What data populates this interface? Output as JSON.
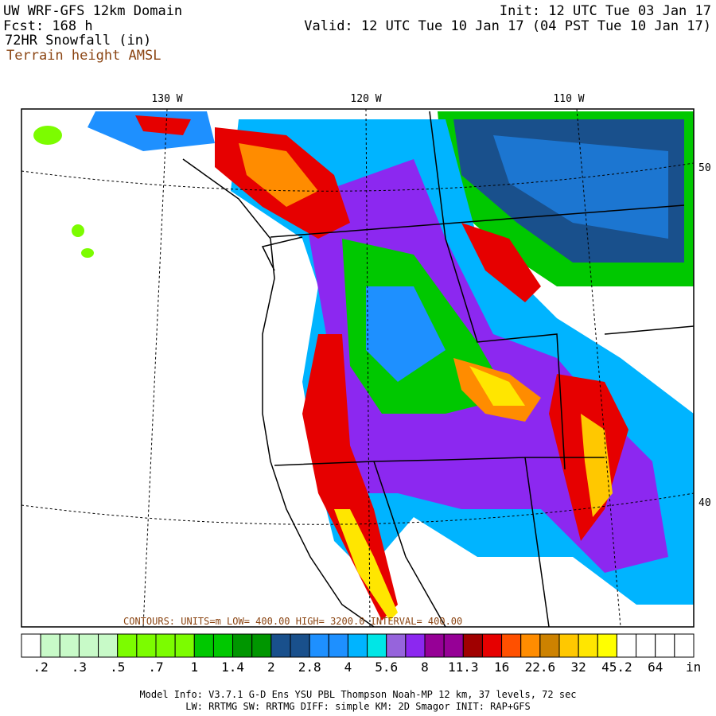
{
  "header": {
    "title": "UW WRF-GFS 12km Domain",
    "forecast": "Fcst:  168 h",
    "product": "72HR Snowfall (in)",
    "terrain": "Terrain height AMSL",
    "init": "Init: 12 UTC Tue 03 Jan 17",
    "valid": "Valid: 12 UTC Tue 10 Jan 17 (04 PST Tue 10 Jan 17)"
  },
  "map": {
    "lon_labels": [
      "130 W",
      "120 W",
      "110 W"
    ],
    "lat_labels": [
      "50",
      "40"
    ],
    "contour_note": "CONTOURS: UNITS=m  LOW= 400.00  HIGH= 3200.0  INTERVAL= 400.00"
  },
  "colorbar": {
    "colors": [
      "#ffffff",
      "#c8fac8",
      "#c8fac8",
      "#c8fac8",
      "#c8fac8",
      "#7cfc00",
      "#7cfc00",
      "#7cfc00",
      "#7cfc00",
      "#00c800",
      "#00c800",
      "#009600",
      "#009600",
      "#19508c",
      "#19508c",
      "#1e90ff",
      "#1e90ff",
      "#00b4ff",
      "#00e6e6",
      "#9664dc",
      "#8c28f0",
      "#960096",
      "#960096",
      "#a00000",
      "#e60000",
      "#ff5000",
      "#ff8c00",
      "#cd8200",
      "#ffc800",
      "#ffe600",
      "#ffff00",
      "#ffffff",
      "#ffffff",
      "#ffffff",
      "#ffffff"
    ],
    "labels": [
      ".2",
      ".3",
      ".5",
      ".7",
      "1",
      "1.4",
      "2",
      "2.8",
      "4",
      "5.6",
      "8",
      "11.3",
      "16",
      "22.6",
      "32",
      "45.2",
      "64"
    ],
    "unit": "in"
  },
  "footer": {
    "line1": "Model Info: V3.7.1    G-D Ens YSU PBL  Thompson     Noah-MP   12 km,   37 levels,   72 sec",
    "line2": "LW: RRTMG SW: RRTMG    DIFF: simple KM: 2D Smagor INIT: RAP+GFS"
  }
}
